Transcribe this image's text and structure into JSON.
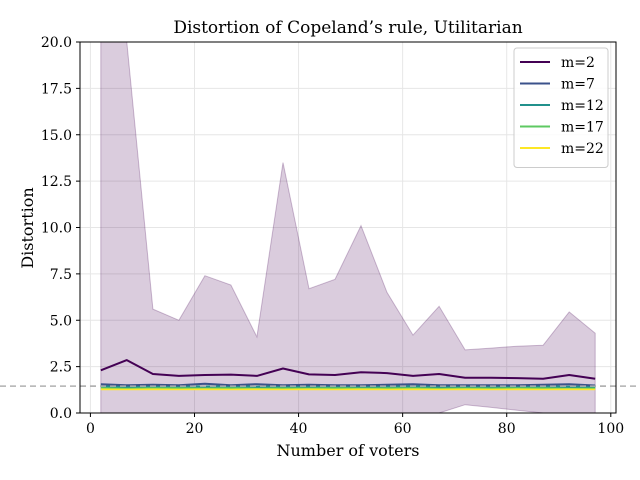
{
  "chart_data": {
    "type": "line",
    "title": "Distortion of Copeland’s rule, Utilitarian",
    "xlabel": "Number of voters",
    "ylabel": "Distortion",
    "xlim": [
      -2,
      101
    ],
    "ylim": [
      0,
      20
    ],
    "xticks": [
      0,
      20,
      40,
      60,
      80,
      100
    ],
    "yticks": [
      0.0,
      2.5,
      5.0,
      7.5,
      10.0,
      12.5,
      15.0,
      17.5,
      20.0
    ],
    "grid": true,
    "legend_position": "top-right",
    "reference_line": {
      "y": 1.45,
      "style": "dashed",
      "color": "#b0b0b0"
    },
    "x": [
      2,
      7,
      12,
      17,
      22,
      27,
      32,
      37,
      42,
      47,
      52,
      57,
      62,
      67,
      72,
      77,
      82,
      87,
      92,
      97
    ],
    "band": {
      "series": "m=2",
      "color": "#440154",
      "opacity": 0.2,
      "upper": [
        20.5,
        20.5,
        5.6,
        5.0,
        7.4,
        6.9,
        4.1,
        13.5,
        6.7,
        7.2,
        10.1,
        6.5,
        4.2,
        5.75,
        3.4,
        3.5,
        3.6,
        3.65,
        5.45,
        4.3
      ],
      "lower": [
        0,
        0,
        0,
        0,
        0,
        0,
        0,
        0,
        0,
        0,
        0,
        0,
        0,
        0,
        0.45,
        0.3,
        0.15,
        0,
        0,
        0
      ]
    },
    "series": [
      {
        "name": "m=2",
        "color": "#440154",
        "values": [
          2.3,
          2.85,
          2.1,
          2.0,
          2.05,
          2.07,
          2.0,
          2.4,
          2.08,
          2.05,
          2.2,
          2.15,
          2.0,
          2.1,
          1.9,
          1.9,
          1.88,
          1.85,
          2.05,
          1.85
        ]
      },
      {
        "name": "m=7",
        "color": "#3b528b",
        "values": [
          1.55,
          1.5,
          1.52,
          1.5,
          1.58,
          1.5,
          1.55,
          1.5,
          1.52,
          1.5,
          1.5,
          1.52,
          1.55,
          1.5,
          1.5,
          1.5,
          1.5,
          1.52,
          1.55,
          1.48
        ]
      },
      {
        "name": "m=12",
        "color": "#21918c",
        "values": [
          1.45,
          1.42,
          1.45,
          1.44,
          1.43,
          1.45,
          1.42,
          1.44,
          1.43,
          1.45,
          1.43,
          1.44,
          1.45,
          1.42,
          1.44,
          1.43,
          1.45,
          1.44,
          1.42,
          1.43
        ]
      },
      {
        "name": "m=17",
        "color": "#5ec962",
        "values": [
          1.38,
          1.37,
          1.38,
          1.37,
          1.38,
          1.37,
          1.38,
          1.37,
          1.38,
          1.37,
          1.38,
          1.37,
          1.38,
          1.37,
          1.38,
          1.37,
          1.38,
          1.37,
          1.38,
          1.37
        ]
      },
      {
        "name": "m=22",
        "color": "#fde725",
        "values": [
          1.28,
          1.28,
          1.28,
          1.28,
          1.28,
          1.28,
          1.28,
          1.28,
          1.28,
          1.28,
          1.28,
          1.28,
          1.28,
          1.28,
          1.28,
          1.28,
          1.28,
          1.28,
          1.28,
          1.28
        ]
      }
    ]
  }
}
